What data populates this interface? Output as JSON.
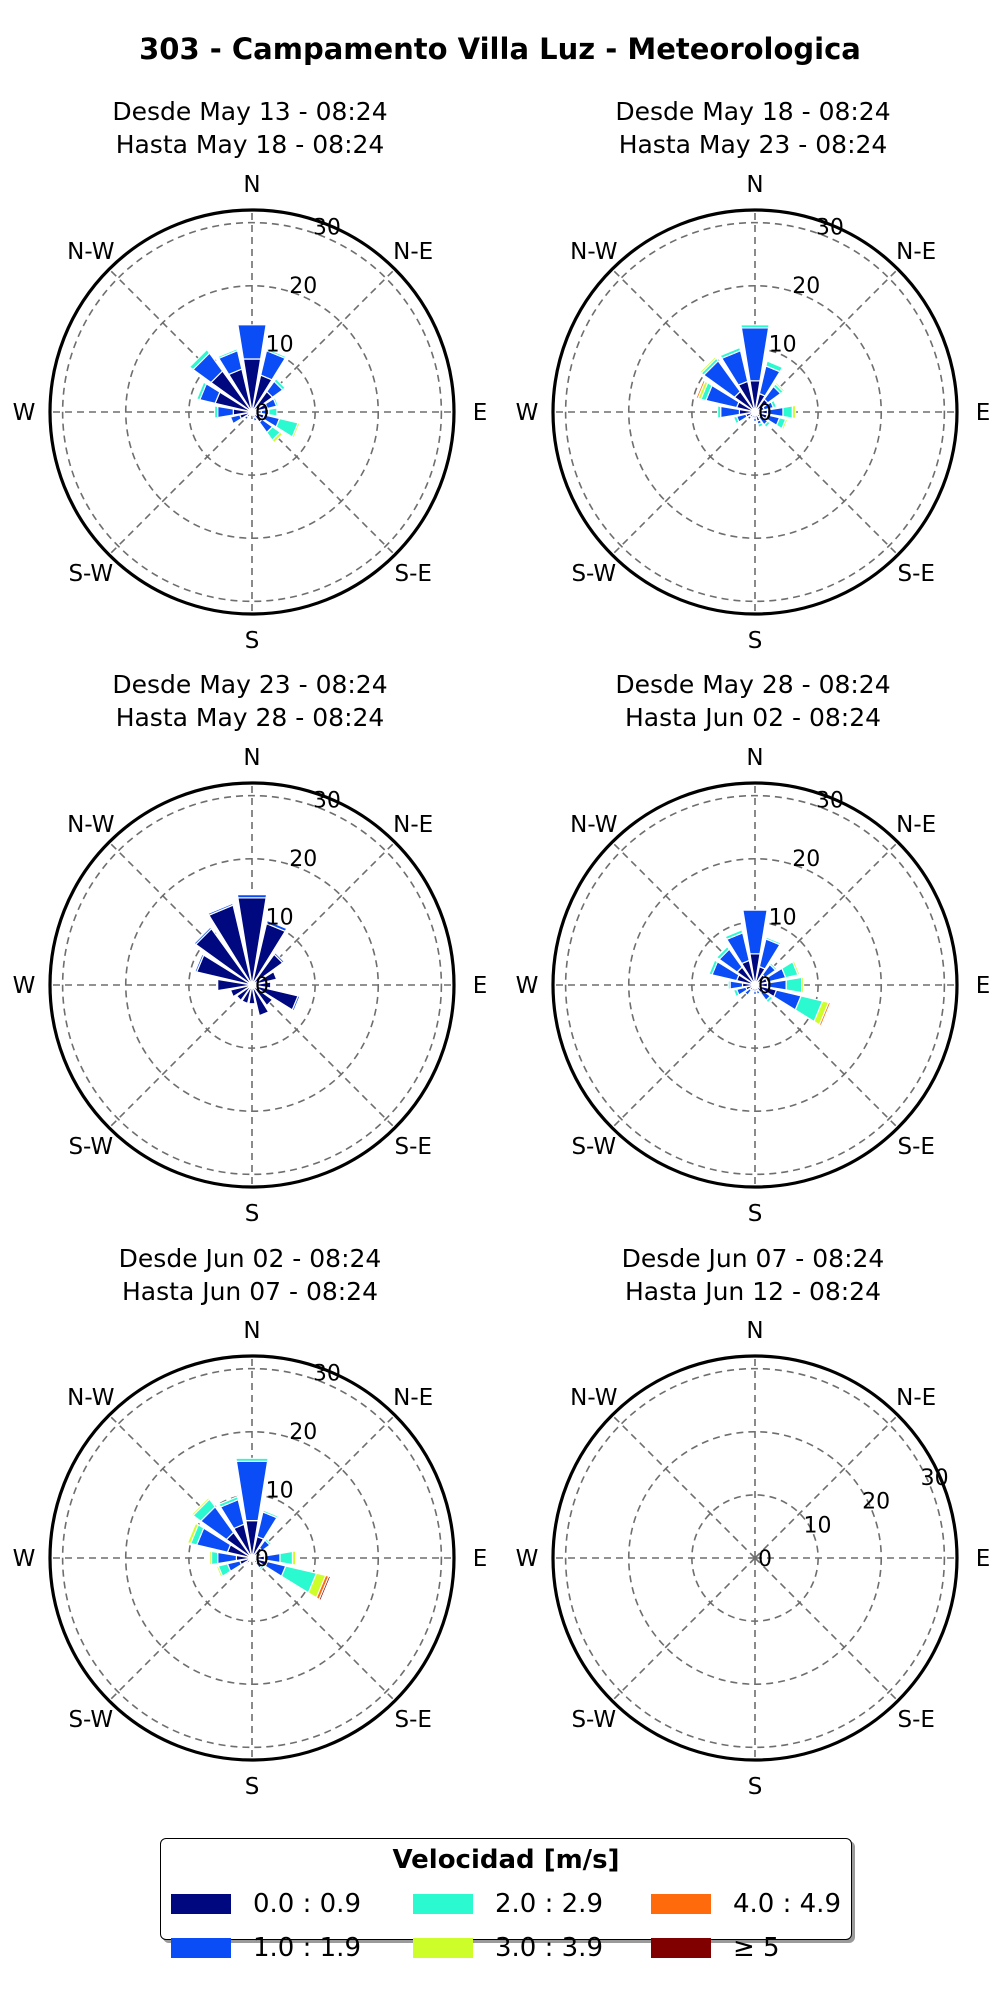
{
  "title": "303 - Campamento Villa Luz - Meteorologica",
  "direction_labels": [
    "N",
    "N-E",
    "E",
    "S-E",
    "S",
    "S-W",
    "W",
    "N-W"
  ],
  "legend": {
    "title": "Velocidad [m/s]",
    "bins": [
      {
        "label": "0.0 : 0.9",
        "color": "#00087f"
      },
      {
        "label": "1.0 : 1.9",
        "color": "#0a4cf6"
      },
      {
        "label": "2.0 : 2.9",
        "color": "#2bf9cf"
      },
      {
        "label": "3.0 : 3.9",
        "color": "#cdfe2a"
      },
      {
        "label": "4.0 : 4.9",
        "color": "#ff6a0c"
      },
      {
        "label": "≥ 5",
        "color": "#800000"
      }
    ]
  },
  "chart_data": [
    {
      "type": "windrose",
      "title_line1": "Desde May 13 - 08:24",
      "title_line2": "Hasta May 18 - 08:24",
      "rticks": [
        0,
        10,
        20,
        30
      ],
      "rmax": 32,
      "sectors_deg": [
        0,
        22.5,
        45,
        67.5,
        90,
        112.5,
        135,
        157.5,
        180,
        202.5,
        225,
        247.5,
        270,
        292.5,
        315,
        337.5
      ],
      "stacks": [
        [
          8.5,
          5.5,
          0,
          0,
          0,
          0
        ],
        [
          6,
          4,
          0.3,
          0,
          0,
          0
        ],
        [
          4,
          2,
          0.5,
          0,
          0,
          0
        ],
        [
          2.5,
          1.5,
          0.3,
          0,
          0,
          0
        ],
        [
          1.5,
          1.2,
          1.3,
          0,
          0,
          0
        ],
        [
          2,
          2.5,
          3,
          0.3,
          0,
          0
        ],
        [
          2,
          2,
          1.5,
          0.5,
          0,
          0
        ],
        [
          1,
          0.5,
          0,
          0,
          0,
          0
        ],
        [
          0.5,
          0,
          0,
          0,
          0,
          0
        ],
        [
          0.5,
          0,
          0,
          0,
          0,
          0
        ],
        [
          1,
          0.5,
          0,
          0,
          0,
          0
        ],
        [
          2,
          1.5,
          0,
          0,
          0,
          0
        ],
        [
          3,
          2.5,
          0.5,
          0,
          0,
          0
        ],
        [
          6,
          2.5,
          0.5,
          0,
          0,
          0
        ],
        [
          8,
          3.5,
          0.7,
          0,
          0,
          0
        ],
        [
          7,
          3,
          0.3,
          0,
          0,
          0
        ]
      ]
    },
    {
      "type": "windrose",
      "title_line1": "Desde May 18 - 08:24",
      "title_line2": "Hasta May 23 - 08:24",
      "rticks": [
        0,
        10,
        20,
        30
      ],
      "rmax": 32,
      "sectors_deg": [
        0,
        22.5,
        45,
        67.5,
        90,
        112.5,
        135,
        157.5,
        180,
        202.5,
        225,
        247.5,
        270,
        292.5,
        315,
        337.5
      ],
      "stacks": [
        [
          5,
          8.5,
          0.5,
          0,
          0,
          0
        ],
        [
          3,
          4.5,
          0.8,
          0,
          0,
          0
        ],
        [
          2.5,
          2.5,
          0.5,
          0.3,
          0,
          0
        ],
        [
          1.5,
          1.5,
          0.5,
          0,
          0,
          0
        ],
        [
          2,
          2.5,
          1.5,
          0.5,
          0,
          0
        ],
        [
          2,
          2,
          1,
          0.3,
          0,
          0
        ],
        [
          1,
          1.5,
          0.5,
          0,
          0,
          0
        ],
        [
          1.5,
          0.5,
          0.5,
          0,
          0,
          0
        ],
        [
          1,
          0.5,
          0,
          0,
          0,
          0
        ],
        [
          0.5,
          0.5,
          0,
          0,
          0,
          0
        ],
        [
          1,
          0.5,
          0,
          0,
          0,
          0
        ],
        [
          1.5,
          1.5,
          0.5,
          0,
          0,
          0
        ],
        [
          2.5,
          3,
          0.5,
          0,
          0,
          0
        ],
        [
          3,
          5,
          0.8,
          0.5,
          0.3,
          0
        ],
        [
          4,
          6,
          0.5,
          0.3,
          0,
          0
        ],
        [
          5,
          5,
          0.5,
          0,
          0,
          0
        ]
      ]
    },
    {
      "type": "windrose",
      "title_line1": "Desde May 23 - 08:24",
      "title_line2": "Hasta May 28 - 08:24",
      "rticks": [
        0,
        10,
        20,
        30
      ],
      "rmax": 32,
      "sectors_deg": [
        0,
        22.5,
        45,
        67.5,
        90,
        112.5,
        135,
        157.5,
        180,
        202.5,
        225,
        247.5,
        270,
        292.5,
        315,
        337.5
      ],
      "stacks": [
        [
          14,
          0.5,
          0,
          0,
          0,
          0
        ],
        [
          10,
          0.5,
          0,
          0,
          0,
          0
        ],
        [
          6,
          0.3,
          0,
          0,
          0,
          0
        ],
        [
          4,
          0,
          0,
          0,
          0,
          0
        ],
        [
          3,
          0,
          0,
          0,
          0,
          0
        ],
        [
          7.5,
          0.3,
          0,
          0,
          0,
          0
        ],
        [
          4,
          0,
          0,
          0,
          0,
          0
        ],
        [
          5,
          0,
          0,
          0,
          0,
          0
        ],
        [
          3,
          0,
          0,
          0,
          0,
          0
        ],
        [
          3,
          0,
          0,
          0,
          0,
          0
        ],
        [
          3,
          0,
          0,
          0,
          0,
          0
        ],
        [
          3.5,
          0,
          0,
          0,
          0,
          0
        ],
        [
          5.5,
          0,
          0,
          0,
          0,
          0
        ],
        [
          9,
          0.3,
          0,
          0,
          0,
          0
        ],
        [
          11,
          0.3,
          0,
          0,
          0,
          0
        ],
        [
          13,
          0.3,
          0,
          0,
          0,
          0
        ]
      ]
    },
    {
      "type": "windrose",
      "title_line1": "Desde May 28 - 08:24",
      "title_line2": "Jun 02 - 08:24",
      "title_prefix2": "Hasta",
      "rticks": [
        0,
        10,
        20,
        30
      ],
      "rmax": 32,
      "sectors_deg": [
        0,
        22.5,
        45,
        67.5,
        90,
        112.5,
        135,
        157.5,
        180,
        202.5,
        225,
        247.5,
        270,
        292.5,
        315,
        337.5
      ],
      "stacks": [
        [
          5,
          7,
          0,
          0,
          0,
          0
        ],
        [
          3,
          4.5,
          0.3,
          0,
          0,
          0
        ],
        [
          2,
          2,
          0.3,
          0,
          0,
          0
        ],
        [
          2,
          3,
          2,
          0.3,
          0,
          0
        ],
        [
          2,
          3,
          2.5,
          0.3,
          0,
          0
        ],
        [
          3.5,
          4,
          3.5,
          1,
          0.3,
          0
        ],
        [
          1.5,
          1.5,
          0.5,
          0,
          0,
          0
        ],
        [
          1,
          0.5,
          0,
          0,
          0,
          0
        ],
        [
          1,
          0.5,
          0,
          0,
          0,
          0
        ],
        [
          0.5,
          0.5,
          0,
          0,
          0,
          0
        ],
        [
          1,
          1,
          0,
          0,
          0,
          0
        ],
        [
          1.5,
          1.5,
          0.5,
          0,
          0,
          0
        ],
        [
          2,
          2,
          0.3,
          0,
          0,
          0
        ],
        [
          3,
          4,
          0.5,
          0,
          0,
          0
        ],
        [
          3.5,
          3.5,
          0.5,
          0,
          0,
          0
        ],
        [
          4,
          4.5,
          0.5,
          0,
          0,
          0
        ]
      ]
    },
    {
      "type": "windrose",
      "title_line1": "Desde Jun 02 - 08:24",
      "title_line2": "Hasta Jun 07 - 08:24",
      "rticks": [
        0,
        10,
        20,
        30
      ],
      "rmax": 32,
      "sectors_deg": [
        0,
        22.5,
        45,
        67.5,
        90,
        112.5,
        135,
        157.5,
        180,
        202.5,
        225,
        247.5,
        270,
        292.5,
        315,
        337.5
      ],
      "stacks": [
        [
          6,
          9.5,
          0.5,
          0,
          0,
          0
        ],
        [
          3.5,
          4,
          0.3,
          0,
          0,
          0
        ],
        [
          2,
          1.5,
          0.3,
          0,
          0,
          0
        ],
        [
          1,
          0.5,
          0,
          0,
          0,
          0
        ],
        [
          2,
          2.5,
          2,
          0.5,
          0,
          0
        ],
        [
          2.5,
          3,
          5,
          1.5,
          0.5,
          0.3
        ],
        [
          1,
          1,
          0.3,
          0,
          0,
          0
        ],
        [
          0.5,
          0.3,
          0,
          0,
          0,
          0
        ],
        [
          0.5,
          0,
          0,
          0,
          0,
          0
        ],
        [
          0.5,
          0,
          0,
          0,
          0,
          0
        ],
        [
          0.5,
          0.5,
          0,
          0,
          0,
          0
        ],
        [
          2,
          2,
          1.5,
          0.3,
          0,
          0
        ],
        [
          2.5,
          3,
          1,
          0.3,
          0,
          0
        ],
        [
          4,
          5,
          1,
          0.5,
          0,
          0
        ],
        [
          5,
          5,
          1.5,
          0.3,
          0,
          0
        ],
        [
          5.5,
          4,
          0.5,
          0,
          0,
          0
        ]
      ]
    },
    {
      "type": "windrose",
      "title_line1": "Desde Jun 07 - 08:24",
      "title_line2": "Hasta Jun 12 - 08:24",
      "rticks": [
        0,
        10,
        20,
        30
      ],
      "rmax": 32,
      "empty": true,
      "sectors_deg": [
        0,
        22.5,
        45,
        67.5,
        90,
        112.5,
        135,
        157.5,
        180,
        202.5,
        225,
        247.5,
        270,
        292.5,
        315,
        337.5
      ],
      "stacks": []
    }
  ]
}
